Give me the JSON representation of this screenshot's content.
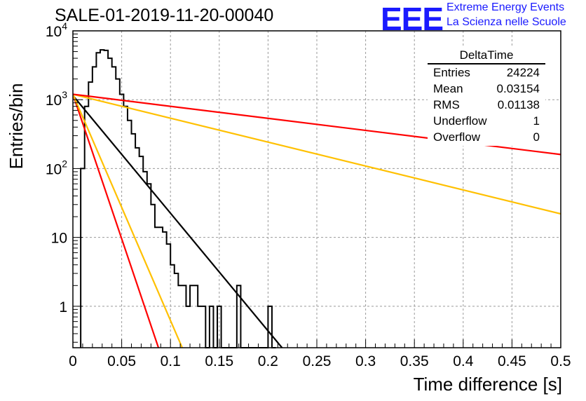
{
  "header": {
    "title": "SALE-01-2019-11-20-00040",
    "logo_text": "EEE",
    "logo_line1": "Extreme Energy Events",
    "logo_line2": "La Scienza nelle Scuole"
  },
  "stats_box": {
    "title": "DeltaTime",
    "rows": [
      {
        "label": "Entries",
        "value": "24224"
      },
      {
        "label": "Mean",
        "value": "0.03154"
      },
      {
        "label": "RMS",
        "value": "0.01138"
      },
      {
        "label": "Underflow",
        "value": "1"
      },
      {
        "label": "Overflow",
        "value": "0"
      }
    ]
  },
  "chart_data": {
    "type": "histogram",
    "xlabel": "Time difference [s]",
    "ylabel": "Entries/bin",
    "xlim": [
      0,
      0.5
    ],
    "ylim": [
      0.25,
      10000
    ],
    "yscale": "log",
    "grid": true,
    "x_ticks": [
      "0",
      "0.05",
      "0.1",
      "0.15",
      "0.2",
      "0.25",
      "0.3",
      "0.35",
      "0.4",
      "0.45",
      "0.5"
    ],
    "y_ticks": [
      {
        "value": 1,
        "label": "1"
      },
      {
        "value": 10,
        "label": "10"
      },
      {
        "value": 100,
        "label": "10^2"
      },
      {
        "value": 1000,
        "label": "10^3"
      },
      {
        "value": 10000,
        "label": "10^4"
      }
    ],
    "bin_width": 0.004,
    "histogram": {
      "color": "#000000",
      "bins": [
        [
          0.008,
          100
        ],
        [
          0.012,
          800
        ],
        [
          0.016,
          1800
        ],
        [
          0.02,
          3000
        ],
        [
          0.024,
          4800
        ],
        [
          0.028,
          5300
        ],
        [
          0.032,
          5200
        ],
        [
          0.036,
          4000
        ],
        [
          0.04,
          3000
        ],
        [
          0.044,
          2000
        ],
        [
          0.048,
          1200
        ],
        [
          0.052,
          800
        ],
        [
          0.056,
          500
        ],
        [
          0.06,
          320
        ],
        [
          0.064,
          200
        ],
        [
          0.068,
          150
        ],
        [
          0.072,
          90
        ],
        [
          0.076,
          60
        ],
        [
          0.08,
          30
        ],
        [
          0.084,
          14
        ],
        [
          0.088,
          14
        ],
        [
          0.092,
          12
        ],
        [
          0.096,
          8
        ],
        [
          0.1,
          4
        ],
        [
          0.104,
          3
        ],
        [
          0.108,
          2
        ],
        [
          0.112,
          2
        ],
        [
          0.116,
          1
        ],
        [
          0.12,
          2
        ],
        [
          0.124,
          2
        ],
        [
          0.128,
          1
        ],
        [
          0.132,
          1
        ],
        [
          0.136,
          0
        ],
        [
          0.14,
          1
        ],
        [
          0.144,
          0
        ],
        [
          0.148,
          1
        ],
        [
          0.152,
          0
        ],
        [
          0.156,
          0
        ],
        [
          0.16,
          0
        ],
        [
          0.164,
          0
        ],
        [
          0.168,
          2
        ],
        [
          0.172,
          0
        ],
        [
          0.176,
          0
        ],
        [
          0.18,
          0
        ],
        [
          0.184,
          0
        ],
        [
          0.188,
          0
        ],
        [
          0.192,
          0
        ],
        [
          0.196,
          0
        ],
        [
          0.2,
          1
        ],
        [
          0.204,
          0
        ]
      ]
    },
    "lines": [
      {
        "color": "#000000",
        "x": [
          0,
          0.22
        ],
        "y": [
          1150,
          0.2
        ]
      },
      {
        "color": "#ff0000",
        "x": [
          0,
          0.09
        ],
        "y": [
          1200,
          0.2
        ]
      },
      {
        "color": "#ffc000",
        "x": [
          0,
          0.115
        ],
        "y": [
          1200,
          0.2
        ]
      },
      {
        "color": "#ffc000",
        "x": [
          0,
          0.5
        ],
        "y": [
          1200,
          22
        ]
      },
      {
        "color": "#ff0000",
        "x": [
          0,
          0.5
        ],
        "y": [
          1200,
          160
        ]
      }
    ]
  }
}
